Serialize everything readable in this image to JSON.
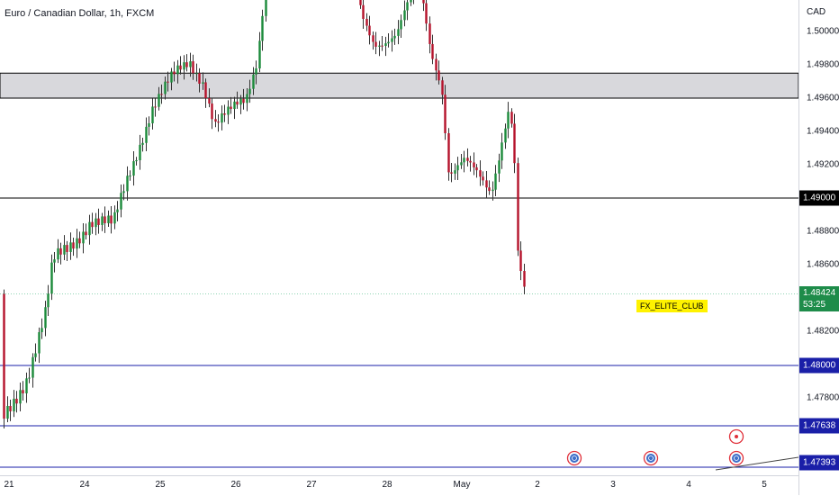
{
  "title": "Euro / Canadian Dollar, 1h, FXCM",
  "currency": "CAD",
  "watermark": "FX_ELITE_CLUB",
  "price_axis": {
    "ticks": [
      "1.50000",
      "1.49800",
      "1.49600",
      "1.49400",
      "1.49200",
      "1.48800",
      "1.48600",
      "1.48200",
      "1.47800"
    ],
    "labels": {
      "level_1490": "1.49000",
      "current_price": "1.48424",
      "countdown": "53:25",
      "level_1480": "1.48000",
      "level_14764": "1.47638",
      "level_14739": "1.47393"
    }
  },
  "time_axis": {
    "ticks": [
      "21",
      "24",
      "25",
      "26",
      "27",
      "28",
      "May",
      "2",
      "3",
      "4",
      "5"
    ]
  },
  "colors": {
    "up_candle": "#1b8a3a",
    "down_candle": "#b5122b",
    "zone_fill": "#d8d8dc",
    "blue_line": "#1a1fa8",
    "black_line": "#000000",
    "current_line": "#8fd4b4"
  },
  "icons": [
    "economic-event-icon",
    "economic-event-icon",
    "economic-event-icon",
    "economic-event-alert-icon"
  ]
}
